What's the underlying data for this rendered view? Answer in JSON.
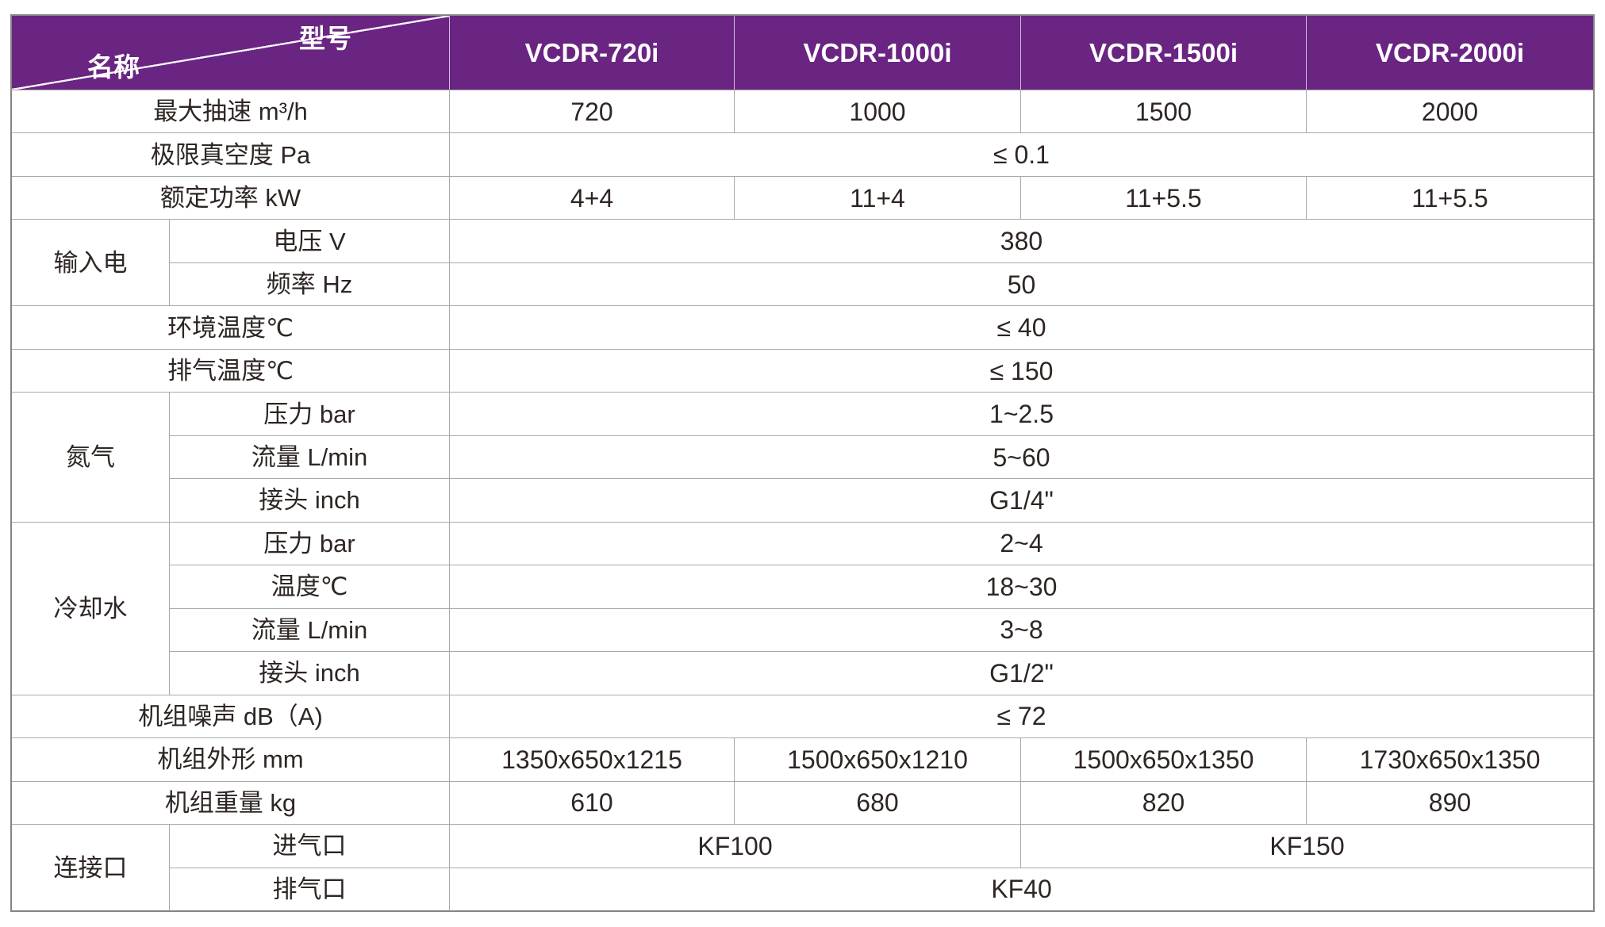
{
  "colors": {
    "header_bg": "#6A2482",
    "header_text": "#ffffff",
    "grid_line": "#a9a9a9",
    "outer_border": "#858585",
    "body_text": "#2e2623",
    "page_bg": "#ffffff"
  },
  "header": {
    "corner_top_right": "型号",
    "corner_bottom_left": "名称",
    "models": [
      "VCDR-720i",
      "VCDR-1000i",
      "VCDR-1500i",
      "VCDR-2000i"
    ]
  },
  "specs": {
    "speed": {
      "label": "最大抽速 m³/h",
      "values": [
        "720",
        "1000",
        "1500",
        "2000"
      ]
    },
    "vacuum": {
      "label": "极限真空度 Pa",
      "value": "≤ 0.1"
    },
    "power": {
      "label": "额定功率 kW",
      "values": [
        "4+4",
        "11+4",
        "11+5.5",
        "11+5.5"
      ]
    },
    "input_power": {
      "group": "输入电",
      "rows": [
        {
          "label": "电压 V",
          "value": "380"
        },
        {
          "label": "频率 Hz",
          "value": "50"
        }
      ]
    },
    "ambient_temp": {
      "label": "环境温度℃",
      "value": "≤ 40"
    },
    "exhaust_temp": {
      "label": "排气温度℃",
      "value": "≤ 150"
    },
    "nitrogen": {
      "group": "氮气",
      "rows": [
        {
          "label": "压力 bar",
          "value": "1~2.5"
        },
        {
          "label": "流量 L/min",
          "value": "5~60"
        },
        {
          "label": "接头 inch",
          "value": "G1/4\""
        }
      ]
    },
    "cooling_water": {
      "group": "冷却水",
      "rows": [
        {
          "label": "压力 bar",
          "value": "2~4"
        },
        {
          "label": "温度℃",
          "value": "18~30"
        },
        {
          "label": "流量 L/min",
          "value": "3~8"
        },
        {
          "label": "接头 inch",
          "value": "G1/2\""
        }
      ]
    },
    "noise": {
      "label": "机组噪声 dB（A)",
      "value": "≤ 72"
    },
    "dimensions": {
      "label": "机组外形 mm",
      "values": [
        "1350x650x1215",
        "1500x650x1210",
        "1500x650x1350",
        "1730x650x1350"
      ]
    },
    "weight": {
      "label": "机组重量 kg",
      "values": [
        "610",
        "680",
        "820",
        "890"
      ]
    },
    "ports": {
      "group": "连接口",
      "inlet": {
        "label": "进气口",
        "values": [
          "KF100",
          "KF150"
        ]
      },
      "outlet": {
        "label": "排气口",
        "value": "KF40"
      }
    }
  }
}
